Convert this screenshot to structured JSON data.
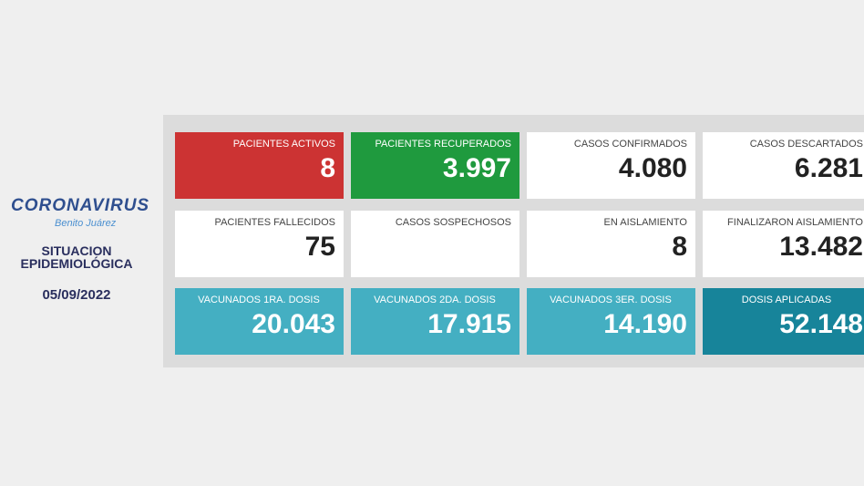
{
  "logo": {
    "title": "CORONAVIRUS",
    "subtitle": "Benito Juárez"
  },
  "heading": {
    "line1": "SITUACION",
    "line2": "EPIDEMIOLÓGICA"
  },
  "date": "05/09/2022",
  "colors": {
    "red": "#cc3333",
    "green": "#1f9a3e",
    "teal": "#44afc2",
    "dark_teal": "#17849a",
    "navy": "#2a2f5e"
  },
  "cards": [
    {
      "label": "PACIENTES ACTIVOS",
      "value": "8"
    },
    {
      "label": "PACIENTES RECUPERADOS",
      "value": "3.997"
    },
    {
      "label": "CASOS CONFIRMADOS",
      "value": "4.080"
    },
    {
      "label": "CASOS DESCARTADOS",
      "value": "6.281"
    },
    {
      "label": "PACIENTES FALLECIDOS",
      "value": "75"
    },
    {
      "label": "CASOS SOSPECHOSOS",
      "value": ""
    },
    {
      "label": "EN AISLAMIENTO",
      "value": "8"
    },
    {
      "label": "FINALIZARON AISLAMIENTO",
      "value": "13.482"
    },
    {
      "label": "VACUNADOS 1RA. DOSIS",
      "value": "20.043"
    },
    {
      "label": "VACUNADOS 2DA. DOSIS",
      "value": "17.915"
    },
    {
      "label": "VACUNADOS 3ER. DOSIS",
      "value": "14.190"
    },
    {
      "label": "DOSIS APLICADAS",
      "value": "52.148"
    }
  ]
}
